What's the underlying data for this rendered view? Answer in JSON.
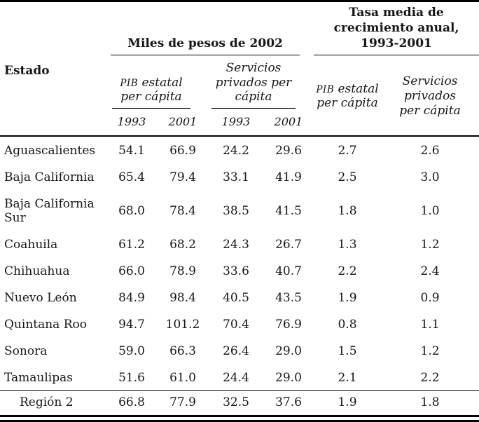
{
  "page": {
    "background": "#ffffff",
    "text_color": "#161616",
    "rule_color": "#000000"
  },
  "table": {
    "header": {
      "estado_label": "Estado",
      "group_pesos": "Miles de pesos de 2002",
      "group_growth": "Tasa media de crecimiento anual, 1993-2001",
      "pib_abbr": "PIB",
      "pib_rest": "estatal per cápita",
      "servicios_label": "Servicios privados per cápita",
      "growth_pib_abbr": "PIB",
      "growth_pib_rest": "estatal per cápita",
      "growth_servicios_label": "Servicios privados per cápita",
      "year_cols": [
        "1993",
        "2001",
        "1993",
        "2001"
      ]
    },
    "rows": [
      {
        "estado": "Aguascalientes",
        "values": [
          "54.1",
          "66.9",
          "24.2",
          "29.6",
          "2.7",
          "2.6"
        ]
      },
      {
        "estado": "Baja California",
        "values": [
          "65.4",
          "79.4",
          "33.1",
          "41.9",
          "2.5",
          "3.0"
        ]
      },
      {
        "estado": "Baja California Sur",
        "values": [
          "68.0",
          "78.4",
          "38.5",
          "41.5",
          "1.8",
          "1.0"
        ]
      },
      {
        "estado": "Coahuila",
        "values": [
          "61.2",
          "68.2",
          "24.3",
          "26.7",
          "1.3",
          "1.2"
        ]
      },
      {
        "estado": "Chihuahua",
        "values": [
          "66.0",
          "78.9",
          "33.6",
          "40.7",
          "2.2",
          "2.4"
        ]
      },
      {
        "estado": "Nuevo León",
        "values": [
          "84.9",
          "98.4",
          "40.5",
          "43.5",
          "1.9",
          "0.9"
        ]
      },
      {
        "estado": "Quintana Roo",
        "values": [
          "94.7",
          "101.2",
          "70.4",
          "76.9",
          "0.8",
          "1.1"
        ]
      },
      {
        "estado": "Sonora",
        "values": [
          "59.0",
          "66.3",
          "26.4",
          "29.0",
          "1.5",
          "1.2"
        ]
      },
      {
        "estado": "Tamaulipas",
        "values": [
          "51.6",
          "61.0",
          "24.4",
          "29.0",
          "2.1",
          "2.2"
        ]
      }
    ],
    "summary_row": {
      "estado": "Región 2",
      "values": [
        "66.8",
        "77.9",
        "32.5",
        "37.6",
        "1.9",
        "1.8"
      ]
    }
  }
}
